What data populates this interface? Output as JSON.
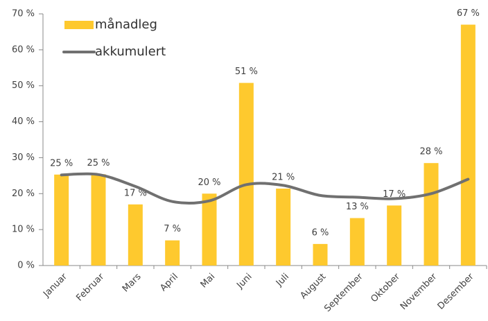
{
  "chart_data": {
    "type": "bar",
    "categories": [
      "Januar",
      "Februar",
      "Mars",
      "April",
      "Mai",
      "Juni",
      "Juli",
      "August",
      "September",
      "Oktober",
      "November",
      "Desember"
    ],
    "series": [
      {
        "name": "månadleg",
        "type": "bar",
        "color": "#fec92e",
        "values": [
          25.3,
          25.4,
          17,
          7,
          20,
          50.8,
          21.4,
          6,
          13.2,
          16.7,
          28.5,
          67
        ],
        "value_labels": [
          "25 %",
          "25 %",
          "17 %",
          "7 %",
          "20 %",
          "51 %",
          "21 %",
          "6 %",
          "13 %",
          "17 %",
          "28 %",
          "67 %"
        ]
      },
      {
        "name": "akkumulert",
        "type": "line",
        "color": "#707070",
        "values": [
          25.2,
          25.3,
          22,
          17.8,
          18,
          22.5,
          22.3,
          19.5,
          19,
          18.6,
          20,
          24
        ]
      }
    ],
    "ylim": [
      0,
      70
    ],
    "yticks": [
      {
        "value": 0,
        "label": "0 %"
      },
      {
        "value": 10,
        "label": "10 %"
      },
      {
        "value": 20,
        "label": "20 %"
      },
      {
        "value": 30,
        "label": "30 %"
      },
      {
        "value": 40,
        "label": "40 %"
      },
      {
        "value": 50,
        "label": "50 %"
      },
      {
        "value": 60,
        "label": "60 %"
      },
      {
        "value": 70,
        "label": "70 %"
      }
    ],
    "legend": "upper left"
  }
}
